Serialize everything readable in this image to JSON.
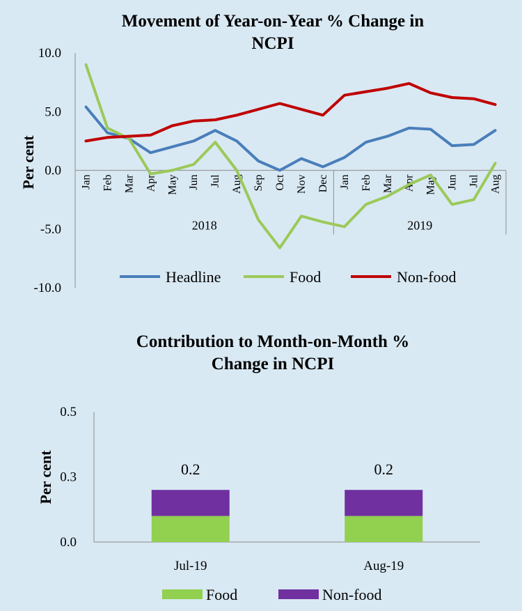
{
  "chart_data": [
    {
      "type": "line",
      "title_lines": [
        "Movement of Year-on-Year % Change in",
        "NCPI"
      ],
      "ylabel": "Per cent",
      "ylim": [
        -10.0,
        10.0
      ],
      "yticks": [
        "10.0",
        "5.0",
        "0.0",
        "-5.0",
        "-10.0"
      ],
      "ytick_values": [
        10,
        5,
        0,
        -5,
        -10
      ],
      "categories": [
        "Jan",
        "Feb",
        "Mar",
        "Apr",
        "May",
        "Jun",
        "Jul",
        "Aug",
        "Sep",
        "Oct",
        "Nov",
        "Dec",
        "Jan",
        "Feb",
        "Mar",
        "Apr",
        "May",
        "Jun",
        "Jul",
        "Aug"
      ],
      "year_groups": [
        {
          "label": "2018",
          "start": 0,
          "end": 11
        },
        {
          "label": "2019",
          "start": 12,
          "end": 19
        }
      ],
      "series": [
        {
          "name": "Headline",
          "color": "#4a7ebb",
          "values": [
            5.4,
            3.2,
            2.7,
            1.5,
            2.0,
            2.5,
            3.4,
            2.5,
            0.8,
            0.0,
            1.0,
            0.3,
            1.1,
            2.4,
            2.9,
            3.6,
            3.5,
            2.1,
            2.2,
            3.4
          ]
        },
        {
          "name": "Food",
          "color": "#9bc95a",
          "values": [
            9.0,
            3.6,
            2.7,
            -0.3,
            0.0,
            0.5,
            2.4,
            0.0,
            -4.2,
            -6.6,
            -3.9,
            -4.4,
            -4.8,
            -2.9,
            -2.2,
            -1.2,
            -0.4,
            -2.9,
            -2.5,
            0.6
          ]
        },
        {
          "name": "Non-food",
          "color": "#c00000",
          "values": [
            2.5,
            2.8,
            2.9,
            3.0,
            3.8,
            4.2,
            4.3,
            4.7,
            5.2,
            5.7,
            5.2,
            4.7,
            6.4,
            6.7,
            7.0,
            7.4,
            6.6,
            6.2,
            6.1,
            5.6
          ]
        }
      ],
      "grid": false,
      "legend_position": "bottom"
    },
    {
      "type": "bar",
      "stacked": true,
      "title_lines": [
        "Contribution to Month-on-Month %",
        "Change in NCPI"
      ],
      "ylabel": "Per cent",
      "ylim": [
        0.0,
        0.5
      ],
      "yticks": [
        "0.5",
        "0.3",
        "0.0"
      ],
      "ytick_values": [
        0.5,
        0.25,
        0.0
      ],
      "categories": [
        "Jul-19",
        "Aug-19"
      ],
      "series": [
        {
          "name": "Food",
          "color": "#92d050",
          "values": [
            0.1,
            0.1
          ]
        },
        {
          "name": "Non-food",
          "color": "#7030a0",
          "values": [
            0.1,
            0.1
          ]
        }
      ],
      "total_values": [
        0.2,
        0.2
      ],
      "total_labels": [
        "0.2",
        "0.2"
      ],
      "grid": false,
      "legend_position": "bottom"
    }
  ]
}
